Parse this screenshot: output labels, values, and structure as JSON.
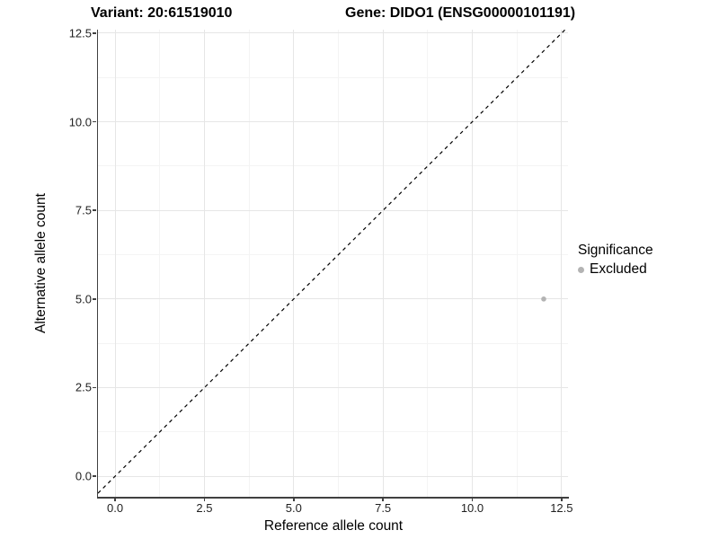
{
  "chart_data": {
    "type": "scatter",
    "title_left": "Variant: 20:61519010",
    "title_right": "Gene: DIDO1 (ENSG00000101191)",
    "xlabel": "Reference allele count",
    "ylabel": "Alternative allele count",
    "xlim": [
      -0.48,
      12.68
    ],
    "ylim": [
      -0.58,
      12.6
    ],
    "x_ticks": [
      0,
      2.5,
      5,
      7.5,
      10,
      12.5
    ],
    "x_tick_labels": [
      "0.0",
      "2.5",
      "5.0",
      "7.5",
      "10.0",
      "12.5"
    ],
    "y_ticks": [
      0,
      2.5,
      5,
      7.5,
      10,
      12.5
    ],
    "y_tick_labels": [
      "0.0",
      "2.5",
      "5.0",
      "7.5",
      "10.0",
      "12.5"
    ],
    "x_minor_ticks": [
      1.25,
      3.75,
      6.25,
      8.75,
      11.25
    ],
    "y_minor_ticks": [
      1.25,
      3.75,
      6.25,
      8.75,
      11.25
    ],
    "grid": "major+minor",
    "legend_title": "Significance",
    "legend_position": "right",
    "series": [
      {
        "name": "Excluded",
        "color": "#b3b3b3",
        "points": [
          {
            "x": 12,
            "y": 5
          }
        ]
      }
    ],
    "reference_line": {
      "kind": "identity",
      "equation": "y = x",
      "style": "dashed",
      "color": "#000000"
    }
  },
  "colors": {
    "background": "#ffffff",
    "grid_major": "#e6e6e6",
    "grid_minor": "#f4f4f4",
    "axis_line": "#404040",
    "tick_label": "#1f1f1f",
    "point": "#b3b3b3"
  }
}
